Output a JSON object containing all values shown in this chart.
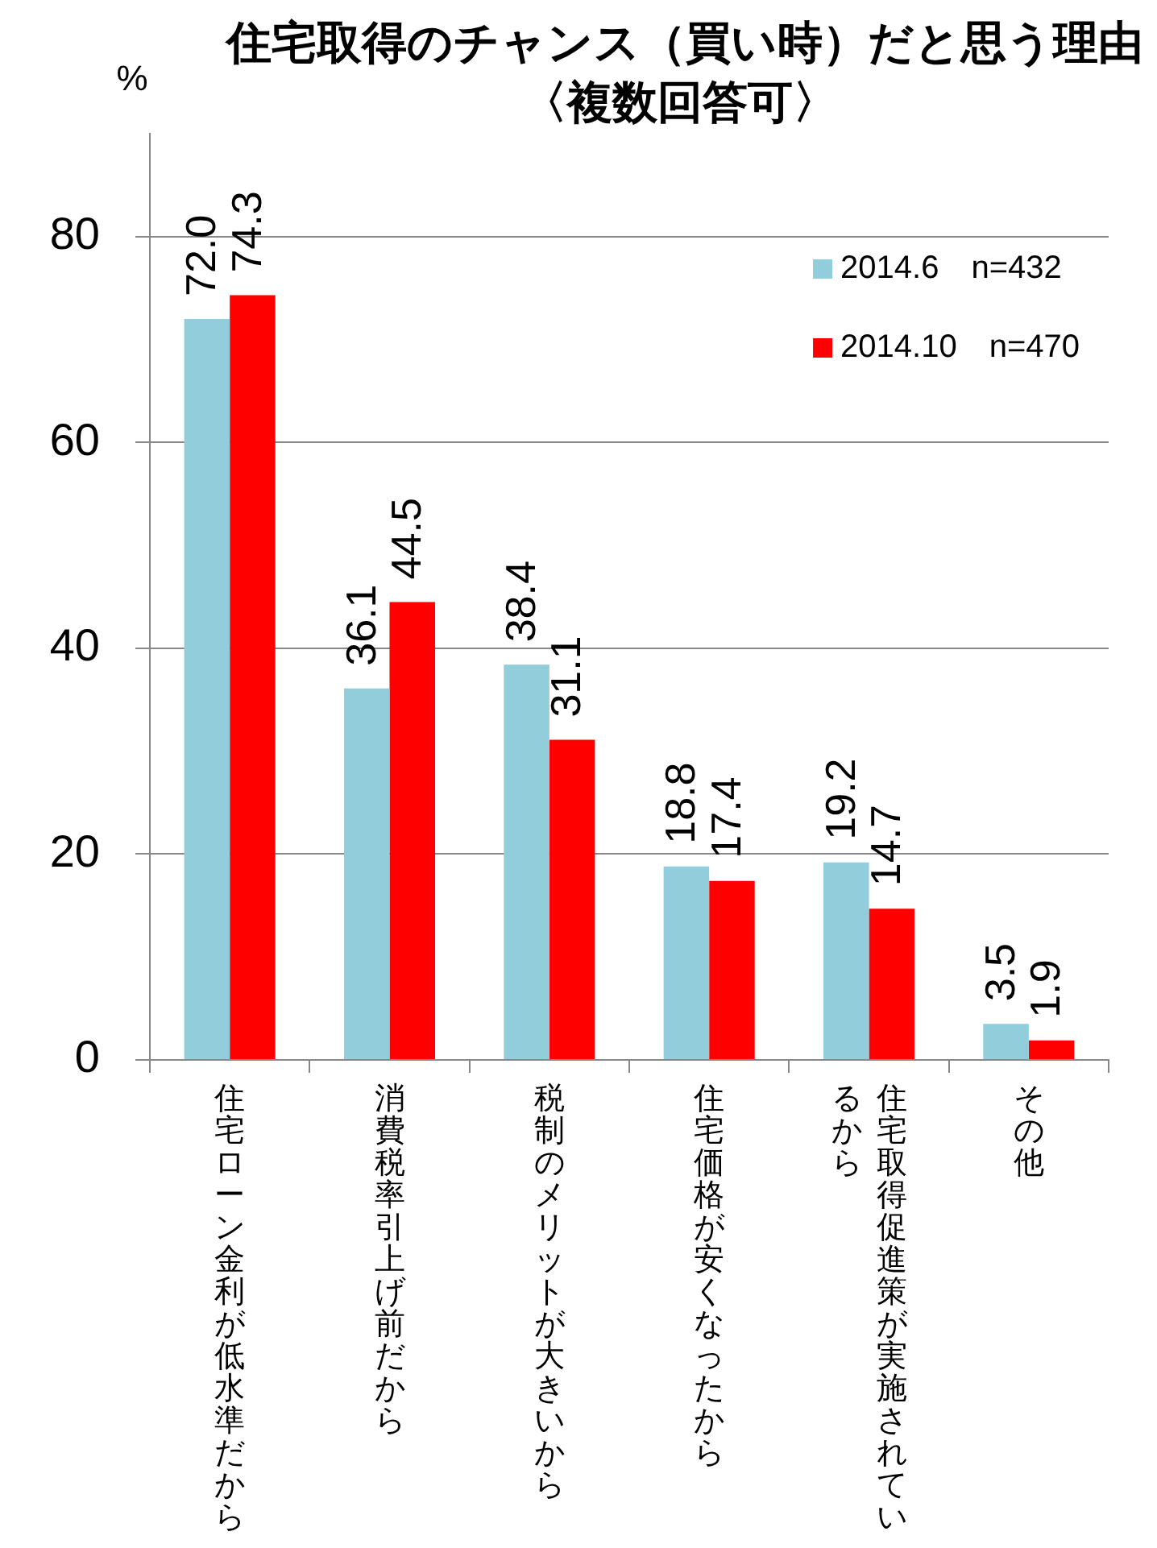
{
  "chart_data": {
    "type": "bar",
    "title": "住宅取得のチャンス（買い時）だと思う理由",
    "subtitle": "〈複数回答可〉",
    "ylabel": "%",
    "categories": [
      "住宅ローン金利が低水準だから",
      "消費税率引上げ前だから",
      "税制のメリットが大きいから",
      "住宅価格が安くなったから",
      "住宅取得促進策が実施されているから",
      "その他"
    ],
    "series": [
      {
        "name": "2014.6　n=432",
        "color": "#92cddc",
        "values": [
          72.0,
          36.1,
          38.4,
          18.8,
          19.2,
          3.5
        ],
        "value_labels": [
          "72.0",
          "36.1",
          "38.4",
          "18.8",
          "19.2",
          "3.5"
        ]
      },
      {
        "name": "2014.10　n=470",
        "color": "#ff0000",
        "values": [
          74.3,
          44.5,
          31.1,
          17.4,
          14.7,
          1.9
        ],
        "value_labels": [
          "74.3",
          "44.5",
          "31.1",
          "17.4",
          "14.7",
          "1.9"
        ]
      }
    ],
    "ylim": [
      0,
      90
    ],
    "yticks": [
      0,
      20,
      40,
      60,
      80
    ],
    "grid": "y",
    "legend": "top right"
  }
}
